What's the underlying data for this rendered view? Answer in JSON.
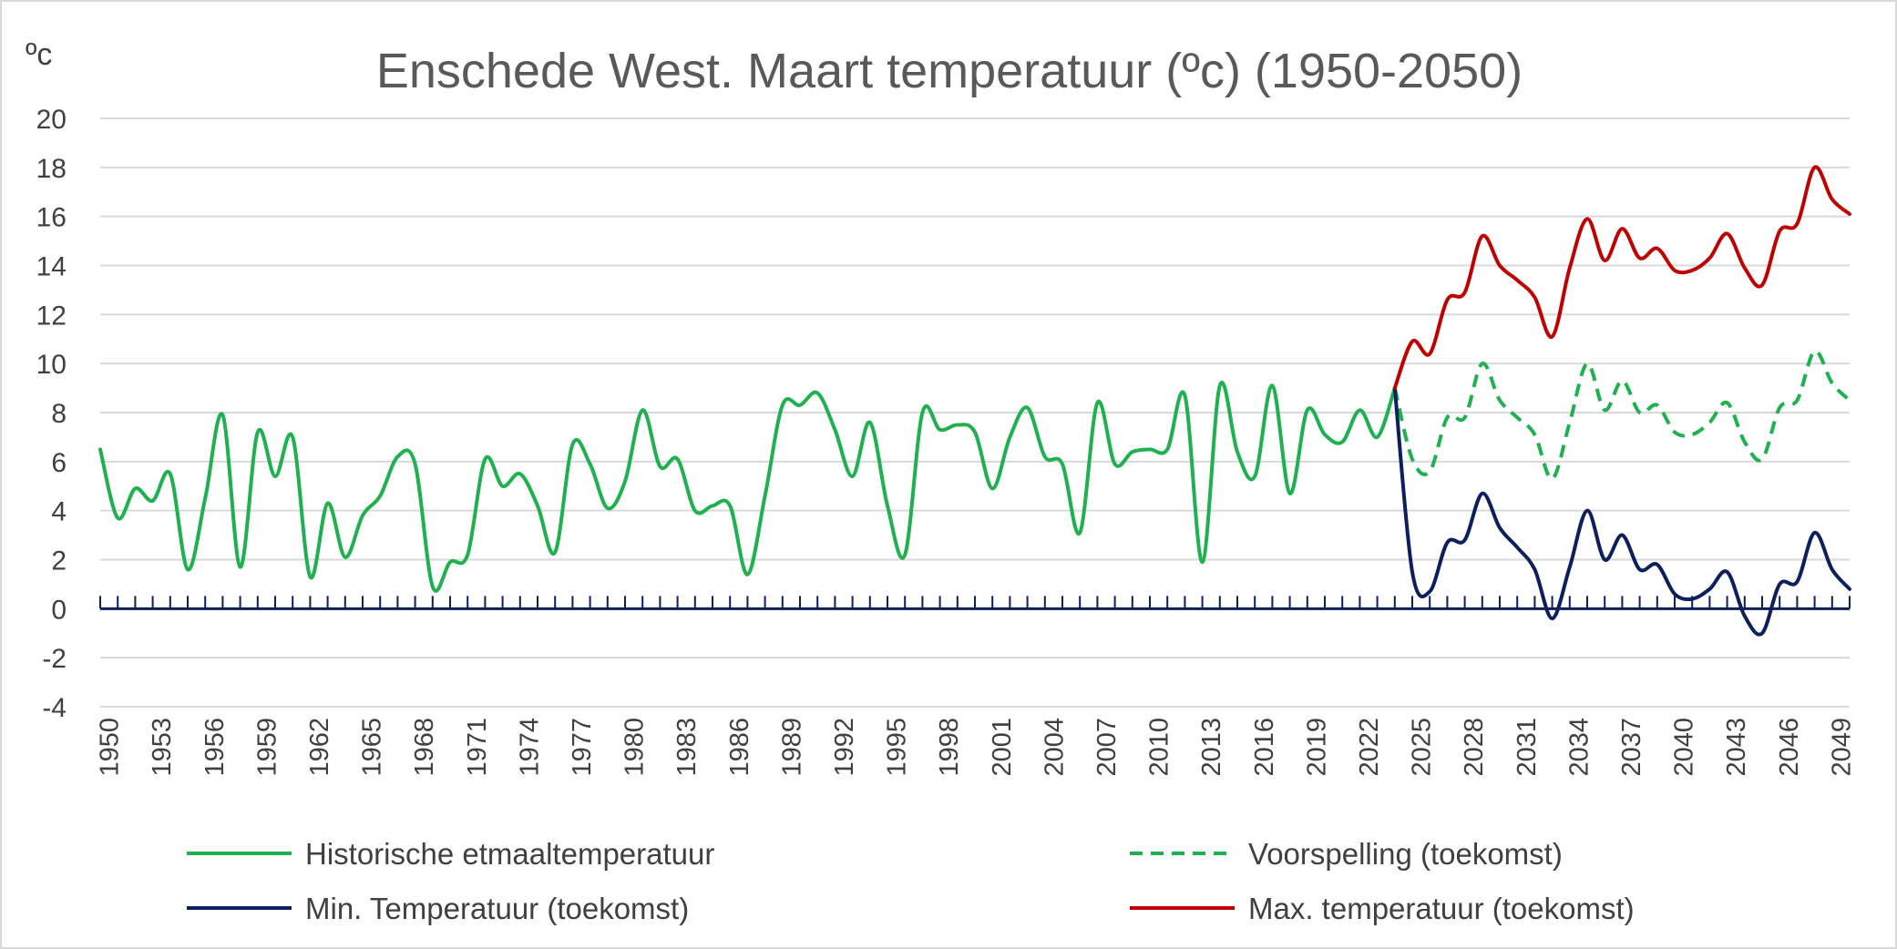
{
  "chart_data": {
    "type": "line",
    "title": "Enschede West. Maart temperatuur (ºc) (1950-2050)",
    "y_unit_label": "ºc",
    "xlabel": "",
    "ylabel": "",
    "ylim": [
      -4,
      20
    ],
    "y_ticks": [
      20,
      18,
      16,
      14,
      12,
      10,
      8,
      6,
      4,
      2,
      0,
      -2,
      -4
    ],
    "x_start": 1950,
    "x_end": 2050,
    "x_tick_labels": [
      "1950",
      "1953",
      "1956",
      "1959",
      "1962",
      "1965",
      "1968",
      "1971",
      "1974",
      "1977",
      "1980",
      "1983",
      "1986",
      "1989",
      "1992",
      "1995",
      "1998",
      "2001",
      "2004",
      "2007",
      "2010",
      "2013",
      "2016",
      "2019",
      "2022",
      "2025",
      "2028",
      "2031",
      "2034",
      "2037",
      "2040",
      "2043",
      "2046",
      "2049"
    ],
    "grid": true,
    "legend_position": "bottom",
    "colors": {
      "historic": "#1fb04f",
      "forecast": "#1fb04f",
      "min": "#0d1f5c",
      "max": "#c00000",
      "grid": "#d9d9d9",
      "text": "#404040"
    },
    "series": [
      {
        "name": "Historische etmaaltemperatuur",
        "style": "solid",
        "x": [
          1950,
          1951,
          1952,
          1953,
          1954,
          1955,
          1956,
          1957,
          1958,
          1959,
          1960,
          1961,
          1962,
          1963,
          1964,
          1965,
          1966,
          1967,
          1968,
          1969,
          1970,
          1971,
          1972,
          1973,
          1974,
          1975,
          1976,
          1977,
          1978,
          1979,
          1980,
          1981,
          1982,
          1983,
          1984,
          1985,
          1986,
          1987,
          1988,
          1989,
          1990,
          1991,
          1992,
          1993,
          1994,
          1995,
          1996,
          1997,
          1998,
          1999,
          2000,
          2001,
          2002,
          2003,
          2004,
          2005,
          2006,
          2007,
          2008,
          2009,
          2010,
          2011,
          2012,
          2013,
          2014,
          2015,
          2016,
          2017,
          2018,
          2019,
          2020,
          2021,
          2022,
          2023,
          2024
        ],
        "values": [
          6.5,
          3.7,
          4.9,
          4.4,
          5.5,
          1.6,
          4.5,
          7.9,
          1.7,
          7.2,
          5.4,
          7.0,
          1.3,
          4.3,
          2.1,
          3.8,
          4.6,
          6.2,
          5.9,
          0.9,
          1.9,
          2.2,
          6.1,
          5.0,
          5.5,
          4.2,
          2.3,
          6.7,
          5.9,
          4.1,
          5.2,
          8.1,
          5.8,
          6.1,
          4.0,
          4.2,
          4.2,
          1.4,
          4.6,
          8.3,
          8.3,
          8.8,
          7.3,
          5.4,
          7.6,
          4.2,
          2.2,
          8.0,
          7.3,
          7.5,
          7.2,
          4.9,
          7.0,
          8.2,
          6.2,
          5.9,
          3.1,
          8.4,
          5.9,
          6.4,
          6.5,
          6.5,
          8.7,
          1.9,
          9.1,
          6.4,
          5.4,
          9.1,
          4.7,
          8.1,
          7.1,
          6.8,
          8.1,
          7.0,
          9.0
        ]
      },
      {
        "name": "Voorspelling (toekomst)",
        "style": "dashed",
        "x": [
          2024,
          2025,
          2026,
          2027,
          2028,
          2029,
          2030,
          2031,
          2032,
          2033,
          2034,
          2035,
          2036,
          2037,
          2038,
          2039,
          2040,
          2041,
          2042,
          2043,
          2044,
          2045,
          2046,
          2047,
          2048,
          2049,
          2050
        ],
        "values": [
          9.0,
          6.1,
          5.6,
          7.8,
          7.8,
          10.0,
          8.5,
          7.8,
          7.1,
          5.3,
          7.6,
          10.0,
          8.1,
          9.3,
          8.0,
          8.3,
          7.2,
          7.1,
          7.6,
          8.4,
          6.8,
          6.1,
          8.2,
          8.5,
          10.5,
          9.2,
          8.5
        ]
      },
      {
        "name": "Min. Temperatuur (toekomst)",
        "style": "solid",
        "x": [
          2024,
          2025,
          2026,
          2027,
          2028,
          2029,
          2030,
          2031,
          2032,
          2033,
          2034,
          2035,
          2036,
          2037,
          2038,
          2039,
          2040,
          2041,
          2042,
          2043,
          2044,
          2045,
          2046,
          2047,
          2048,
          2049,
          2050
        ],
        "values": [
          9.0,
          1.5,
          0.7,
          2.7,
          2.8,
          4.7,
          3.3,
          2.5,
          1.6,
          -0.4,
          1.7,
          4.0,
          2.0,
          3.0,
          1.6,
          1.8,
          0.6,
          0.4,
          0.8,
          1.5,
          -0.3,
          -1.0,
          1.0,
          1.1,
          3.1,
          1.6,
          0.8
        ]
      },
      {
        "name": "Max. temperatuur (toekomst)",
        "style": "solid",
        "x": [
          2024,
          2025,
          2026,
          2027,
          2028,
          2029,
          2030,
          2031,
          2032,
          2033,
          2034,
          2035,
          2036,
          2037,
          2038,
          2039,
          2040,
          2041,
          2042,
          2043,
          2044,
          2045,
          2046,
          2047,
          2048,
          2049,
          2050
        ],
        "values": [
          9.0,
          10.9,
          10.4,
          12.6,
          12.9,
          15.2,
          14.0,
          13.4,
          12.7,
          11.1,
          13.9,
          15.9,
          14.2,
          15.5,
          14.3,
          14.7,
          13.8,
          13.8,
          14.3,
          15.3,
          13.9,
          13.2,
          15.4,
          15.7,
          18.0,
          16.7,
          16.1
        ]
      }
    ]
  }
}
